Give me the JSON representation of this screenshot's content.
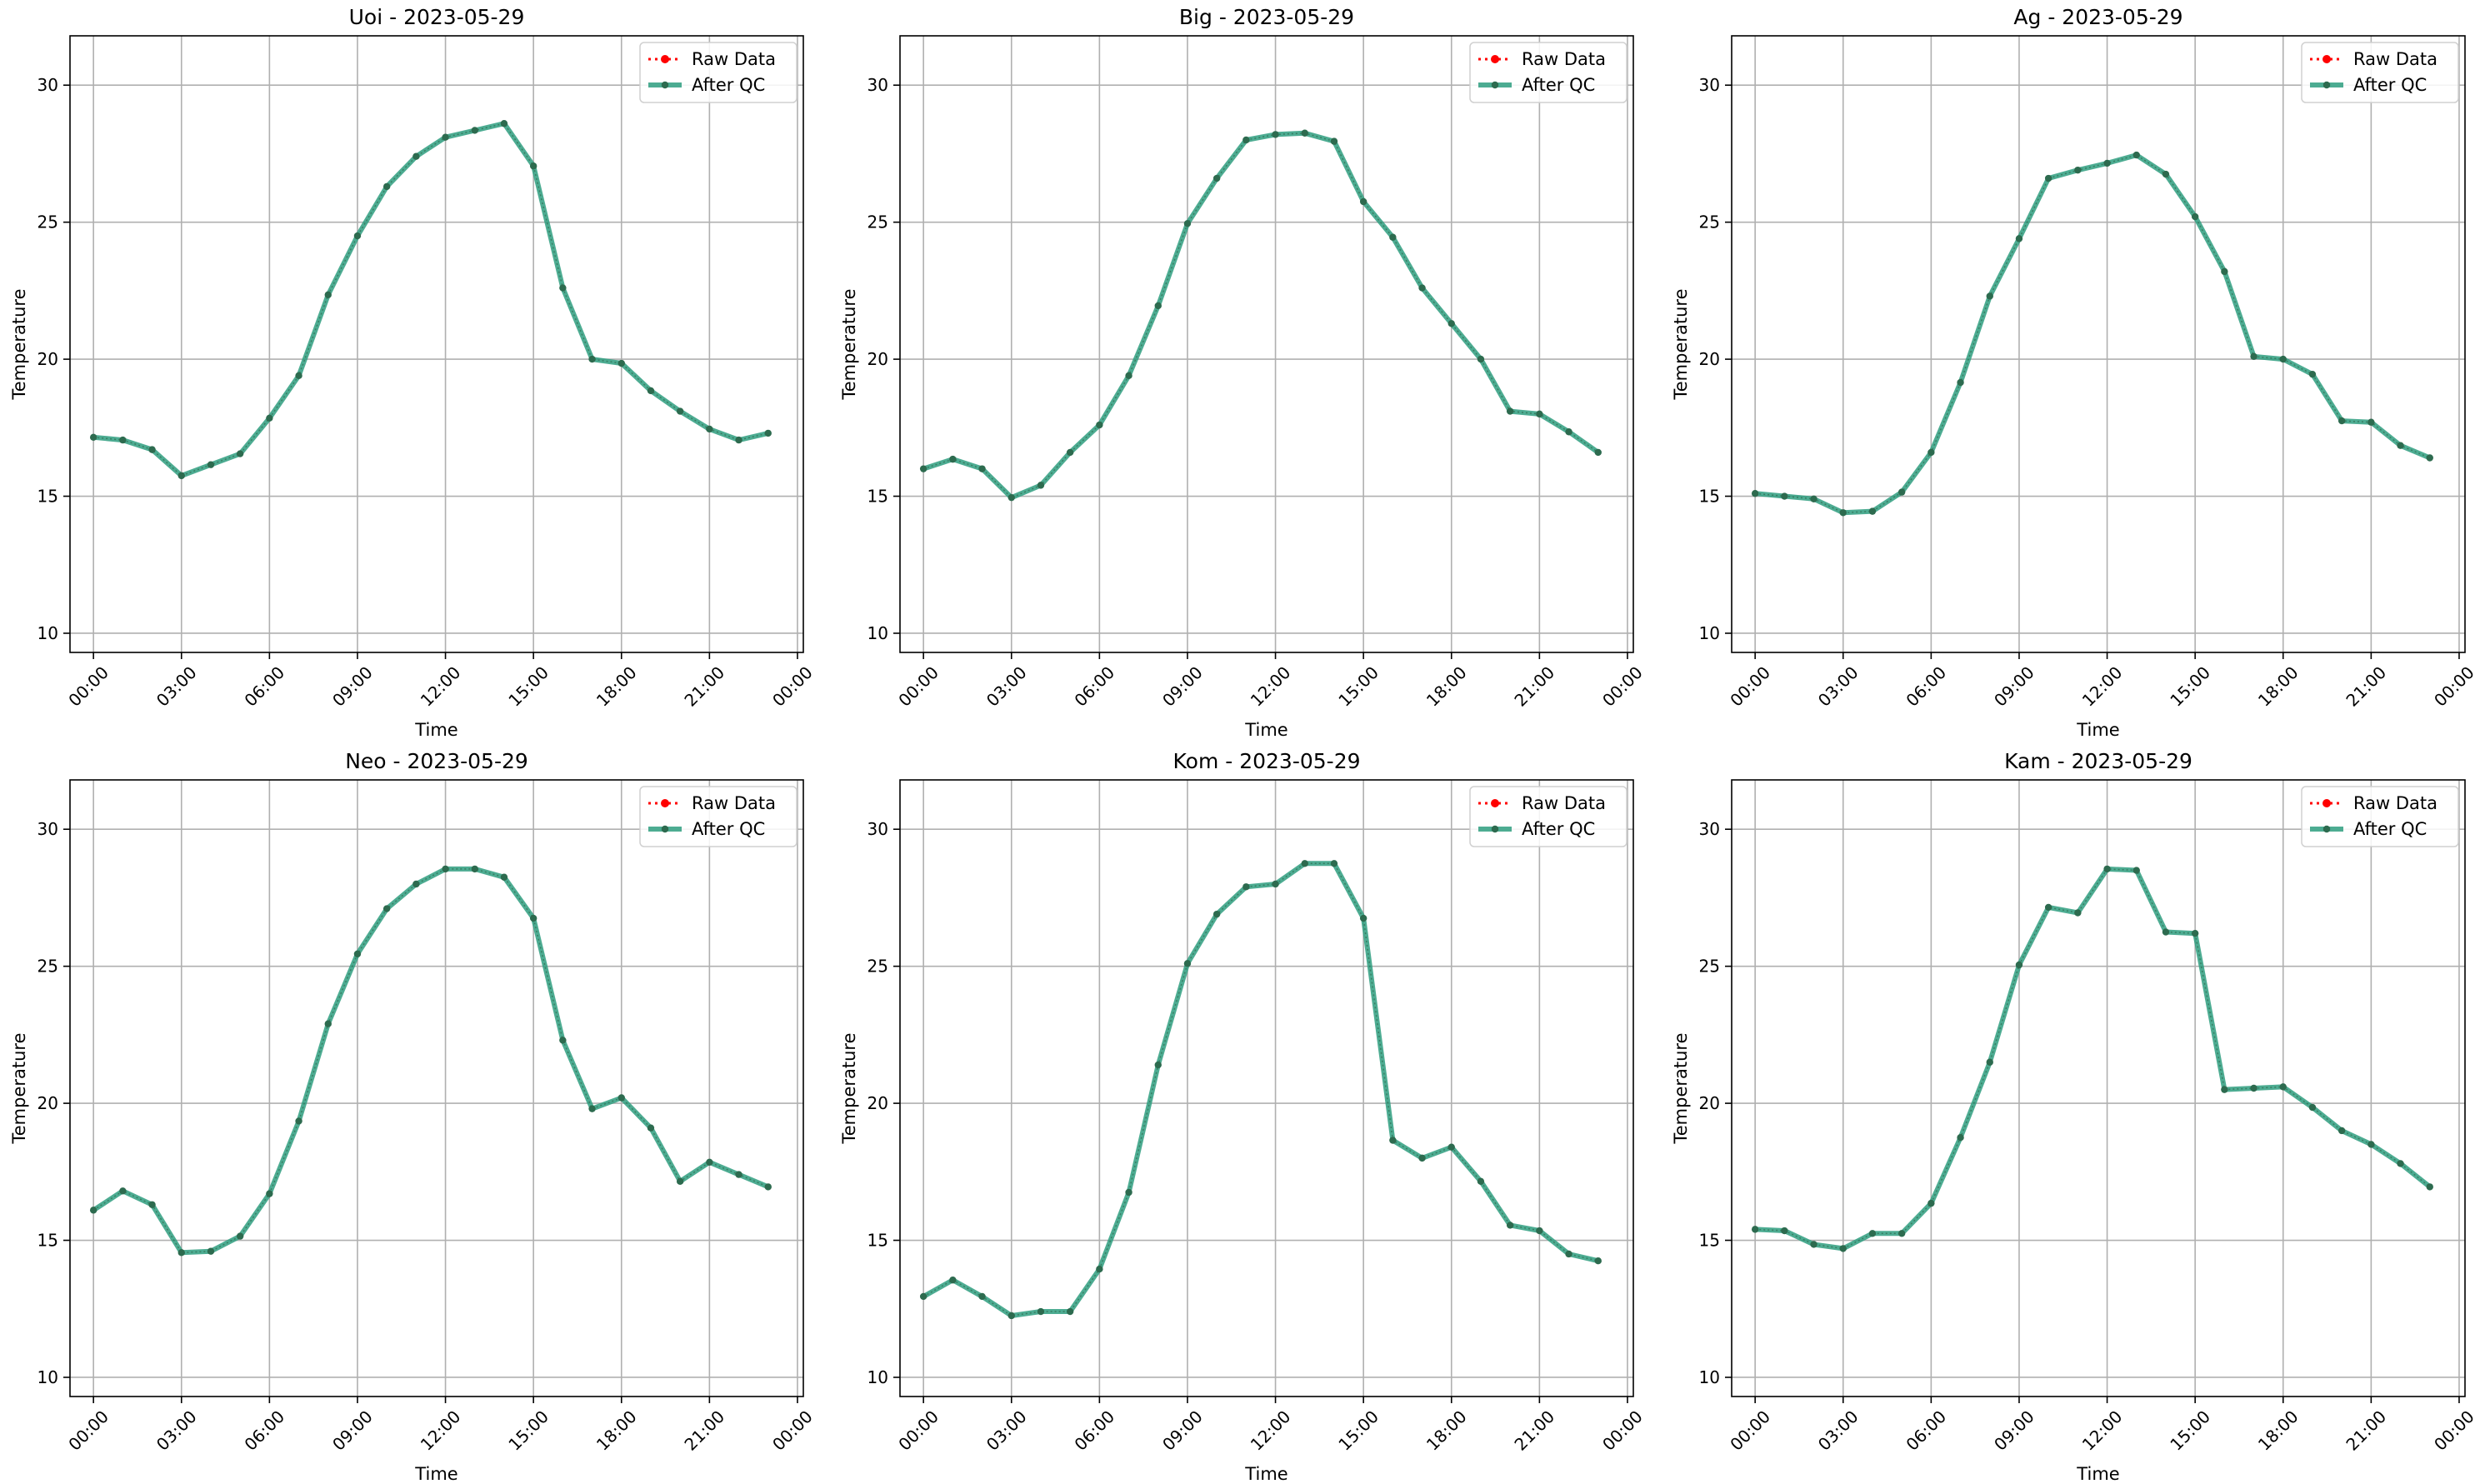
{
  "chart_data": [
    {
      "type": "line",
      "title": "Uoi - 2023-05-29",
      "xlabel": "Time",
      "ylabel": "Temperature",
      "ylim": [
        9.3,
        31.8
      ],
      "xlim": [
        -0.8,
        24.2
      ],
      "yticks": [
        "10",
        "15",
        "20",
        "25",
        "30"
      ],
      "xticks": [
        "00:00",
        "03:00",
        "06:00",
        "09:00",
        "12:00",
        "15:00",
        "18:00",
        "21:00",
        "00:00"
      ],
      "grid": true,
      "legend_position": "top-right",
      "series": [
        {
          "name": "Raw Data",
          "values": [
            17.15,
            17.05,
            16.7,
            15.75,
            16.15,
            16.55,
            17.85,
            19.4,
            22.35,
            24.5,
            26.3,
            27.4,
            28.1,
            28.35,
            28.6,
            27.05,
            22.6,
            20.0,
            19.85,
            18.85,
            18.1,
            17.45,
            17.05,
            17.3
          ]
        },
        {
          "name": "After QC",
          "values": [
            17.15,
            17.05,
            16.7,
            15.75,
            16.15,
            16.55,
            17.85,
            19.4,
            22.35,
            24.5,
            26.3,
            27.4,
            28.1,
            28.35,
            28.6,
            27.05,
            22.6,
            20.0,
            19.85,
            18.85,
            18.1,
            17.45,
            17.05,
            17.3
          ]
        }
      ]
    },
    {
      "type": "line",
      "title": "Big - 2023-05-29",
      "xlabel": "Time",
      "ylabel": "Temperature",
      "ylim": [
        9.3,
        31.8
      ],
      "xlim": [
        -0.8,
        24.2
      ],
      "yticks": [
        "10",
        "15",
        "20",
        "25",
        "30"
      ],
      "xticks": [
        "00:00",
        "03:00",
        "06:00",
        "09:00",
        "12:00",
        "15:00",
        "18:00",
        "21:00",
        "00:00"
      ],
      "grid": true,
      "legend_position": "top-right",
      "series": [
        {
          "name": "Raw Data",
          "values": [
            16.0,
            16.35,
            16.0,
            14.95,
            15.4,
            16.6,
            17.6,
            19.4,
            21.95,
            24.95,
            26.6,
            28.0,
            28.2,
            28.25,
            27.95,
            25.75,
            24.45,
            22.6,
            21.3,
            20.0,
            18.1,
            18.0,
            17.35,
            16.6
          ]
        },
        {
          "name": "After QC",
          "values": [
            16.0,
            16.35,
            16.0,
            14.95,
            15.4,
            16.6,
            17.6,
            19.4,
            21.95,
            24.95,
            26.6,
            28.0,
            28.2,
            28.25,
            27.95,
            25.75,
            24.45,
            22.6,
            21.3,
            20.0,
            18.1,
            18.0,
            17.35,
            16.6
          ]
        }
      ]
    },
    {
      "type": "line",
      "title": "Ag - 2023-05-29",
      "xlabel": "Time",
      "ylabel": "Temperature",
      "ylim": [
        9.3,
        31.8
      ],
      "xlim": [
        -0.8,
        24.2
      ],
      "yticks": [
        "10",
        "15",
        "20",
        "25",
        "30"
      ],
      "xticks": [
        "00:00",
        "03:00",
        "06:00",
        "09:00",
        "12:00",
        "15:00",
        "18:00",
        "21:00",
        "00:00"
      ],
      "grid": true,
      "legend_position": "top-right",
      "series": [
        {
          "name": "Raw Data",
          "values": [
            15.1,
            15.0,
            14.9,
            14.4,
            14.45,
            15.15,
            16.6,
            19.15,
            22.3,
            24.4,
            26.6,
            26.9,
            27.15,
            27.45,
            26.75,
            25.2,
            23.2,
            20.1,
            20.0,
            19.45,
            17.75,
            17.7,
            16.85,
            16.4
          ]
        },
        {
          "name": "After QC",
          "values": [
            15.1,
            15.0,
            14.9,
            14.4,
            14.45,
            15.15,
            16.6,
            19.15,
            22.3,
            24.4,
            26.6,
            26.9,
            27.15,
            27.45,
            26.75,
            25.2,
            23.2,
            20.1,
            20.0,
            19.45,
            17.75,
            17.7,
            16.85,
            16.4
          ]
        }
      ]
    },
    {
      "type": "line",
      "title": "Neo - 2023-05-29",
      "xlabel": "Time",
      "ylabel": "Temperature",
      "ylim": [
        9.3,
        31.8
      ],
      "xlim": [
        -0.8,
        24.2
      ],
      "yticks": [
        "10",
        "15",
        "20",
        "25",
        "30"
      ],
      "xticks": [
        "00:00",
        "03:00",
        "06:00",
        "09:00",
        "12:00",
        "15:00",
        "18:00",
        "21:00",
        "00:00"
      ],
      "grid": true,
      "legend_position": "top-right",
      "series": [
        {
          "name": "Raw Data",
          "values": [
            16.1,
            16.8,
            16.3,
            14.55,
            14.6,
            15.15,
            16.7,
            19.35,
            22.9,
            25.45,
            27.1,
            28.0,
            28.55,
            28.55,
            28.25,
            26.75,
            22.3,
            19.8,
            20.2,
            19.1,
            17.15,
            17.85,
            17.4,
            16.95
          ]
        },
        {
          "name": "After QC",
          "values": [
            16.1,
            16.8,
            16.3,
            14.55,
            14.6,
            15.15,
            16.7,
            19.35,
            22.9,
            25.45,
            27.1,
            28.0,
            28.55,
            28.55,
            28.25,
            26.75,
            22.3,
            19.8,
            20.2,
            19.1,
            17.15,
            17.85,
            17.4,
            16.95
          ]
        }
      ]
    },
    {
      "type": "line",
      "title": "Kom - 2023-05-29",
      "xlabel": "Time",
      "ylabel": "Temperature",
      "ylim": [
        9.3,
        31.8
      ],
      "xlim": [
        -0.8,
        24.2
      ],
      "yticks": [
        "10",
        "15",
        "20",
        "25",
        "30"
      ],
      "xticks": [
        "00:00",
        "03:00",
        "06:00",
        "09:00",
        "12:00",
        "15:00",
        "18:00",
        "21:00",
        "00:00"
      ],
      "grid": true,
      "legend_position": "top-right",
      "series": [
        {
          "name": "Raw Data",
          "values": [
            12.95,
            13.55,
            12.95,
            12.25,
            12.4,
            12.4,
            13.95,
            16.75,
            21.4,
            25.1,
            26.9,
            27.9,
            28.0,
            28.75,
            28.75,
            26.75,
            18.65,
            18.0,
            18.4,
            17.15,
            15.55,
            15.35,
            14.5,
            14.25
          ]
        },
        {
          "name": "After QC",
          "values": [
            12.95,
            13.55,
            12.95,
            12.25,
            12.4,
            12.4,
            13.95,
            16.75,
            21.4,
            25.1,
            26.9,
            27.9,
            28.0,
            28.75,
            28.75,
            26.75,
            18.65,
            18.0,
            18.4,
            17.15,
            15.55,
            15.35,
            14.5,
            14.25
          ]
        }
      ]
    },
    {
      "type": "line",
      "title": "Kam - 2023-05-29",
      "xlabel": "Time",
      "ylabel": "Temperature",
      "ylim": [
        9.3,
        31.8
      ],
      "xlim": [
        -0.8,
        24.2
      ],
      "yticks": [
        "10",
        "15",
        "20",
        "25",
        "30"
      ],
      "xticks": [
        "00:00",
        "03:00",
        "06:00",
        "09:00",
        "12:00",
        "15:00",
        "18:00",
        "21:00",
        "00:00"
      ],
      "grid": true,
      "legend_position": "top-right",
      "series": [
        {
          "name": "Raw Data",
          "values": [
            15.4,
            15.35,
            14.85,
            14.7,
            15.25,
            15.25,
            16.35,
            18.75,
            21.5,
            25.05,
            27.15,
            26.95,
            28.55,
            28.5,
            26.25,
            26.2,
            20.5,
            20.55,
            20.6,
            19.85,
            19.0,
            18.5,
            17.8,
            16.95
          ]
        },
        {
          "name": "After QC",
          "values": [
            15.4,
            15.35,
            14.85,
            14.7,
            15.25,
            15.25,
            16.35,
            18.75,
            21.5,
            25.05,
            27.15,
            26.95,
            28.55,
            28.5,
            26.25,
            26.2,
            20.5,
            20.55,
            20.6,
            19.85,
            19.0,
            18.5,
            17.8,
            16.95
          ]
        }
      ]
    }
  ],
  "colors": {
    "raw": "#ff0000",
    "qc_line": "#2e9e7f",
    "qc_marker": "#2d6b4f",
    "grid": "#b0b0b0",
    "axes": "#000000",
    "legend_border": "#d0d0d0"
  }
}
